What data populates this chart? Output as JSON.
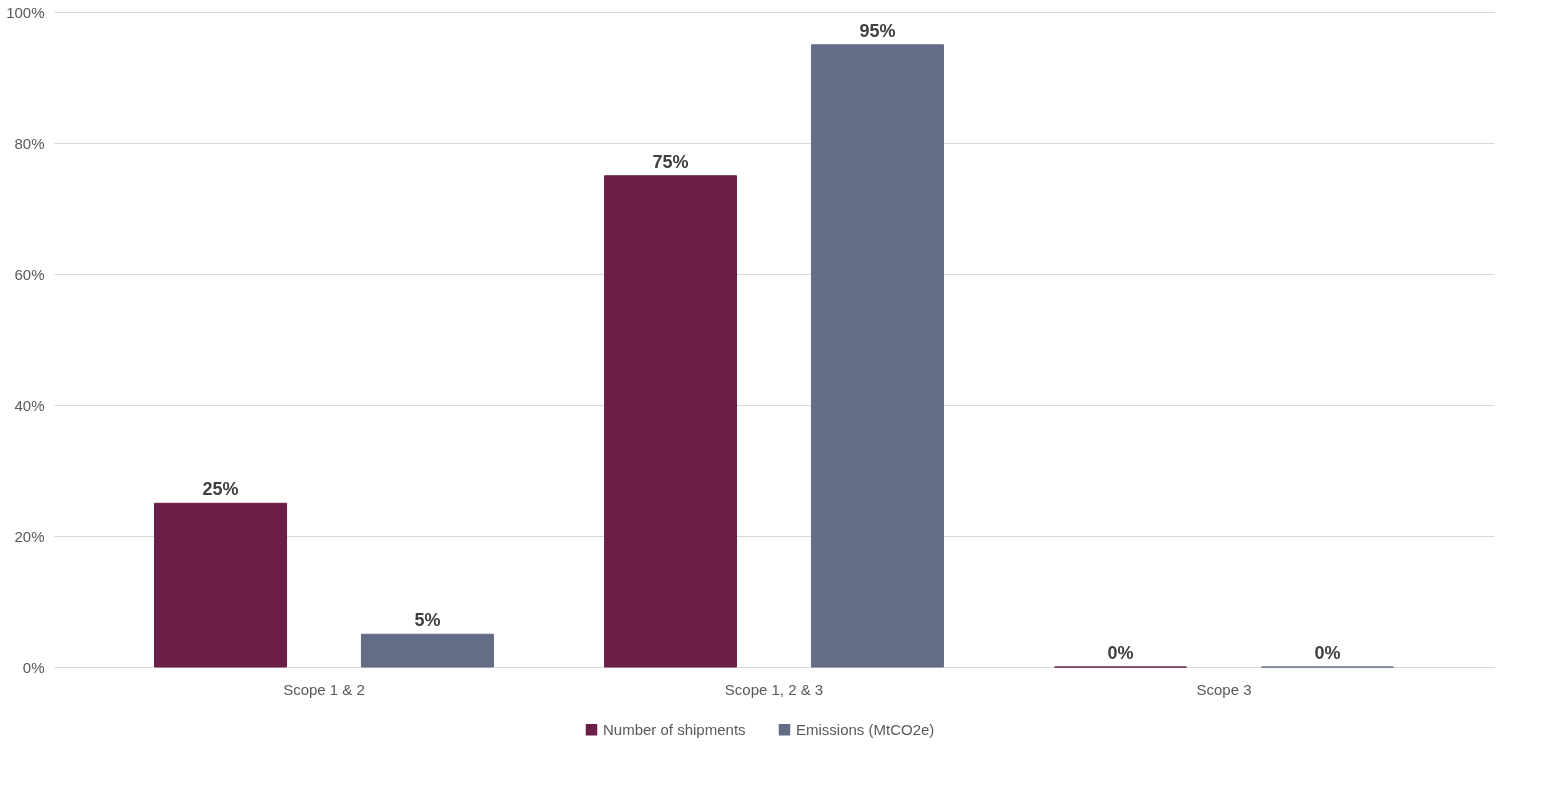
{
  "chart_data": {
    "type": "bar",
    "categories": [
      "Scope 1 & 2",
      "Scope 1, 2 & 3",
      "Scope 3"
    ],
    "series": [
      {
        "name": "Number of shipments",
        "color": "#6b1f48",
        "values": [
          25,
          75,
          0
        ],
        "value_labels": [
          "25%",
          "75%",
          "0%"
        ]
      },
      {
        "name": "Emissions (MtCO2e)",
        "color": "#646c86",
        "values": [
          5,
          95,
          0
        ],
        "value_labels": [
          "5%",
          "95%",
          "0%"
        ]
      }
    ],
    "ylim": [
      0,
      100
    ],
    "yticks": [
      {
        "value": 0,
        "label": "0%"
      },
      {
        "value": 20,
        "label": "20%"
      },
      {
        "value": 40,
        "label": "40%"
      },
      {
        "value": 60,
        "label": "60%"
      },
      {
        "value": 80,
        "label": "80%"
      },
      {
        "value": 100,
        "label": "100%"
      }
    ],
    "grid": "y",
    "legend": "bottom"
  }
}
